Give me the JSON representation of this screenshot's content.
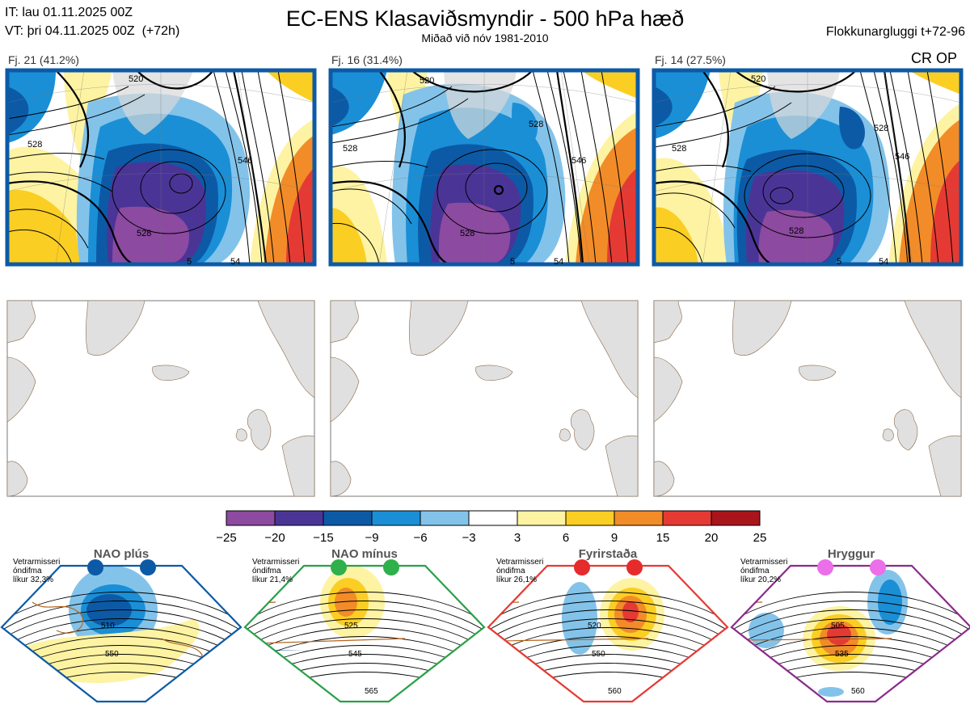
{
  "header": {
    "it_line": "IT: lau 01.11.2025 00Z",
    "vt_line": "VT: þri 04.11.2025 00Z  (+72h)",
    "title": "EC-ENS Klasaviðsmyndir - 500 hPa hæð",
    "subtitle": "Miðað við nóv 1981-2010",
    "window": "Flokkunargluggi t+72-96",
    "cr_op": "CR OP"
  },
  "clusters": [
    {
      "label": "Fj. 21 (41.2%)",
      "members": 21,
      "percent": 41.2,
      "contours": [
        "520",
        "528",
        "546",
        "528",
        "5",
        "54"
      ]
    },
    {
      "label": "Fj. 16 (31.4%)",
      "members": 16,
      "percent": 31.4,
      "contours": [
        "520",
        "528",
        "528",
        "546",
        "528",
        "5",
        "54"
      ]
    },
    {
      "label": "Fj. 14 (27.5%)",
      "members": 14,
      "percent": 27.5,
      "contours": [
        "520",
        "528",
        "528",
        "546",
        "528",
        "5",
        "54"
      ]
    }
  ],
  "colorbar": {
    "ticks": [
      "−25",
      "−20",
      "−15",
      "−9",
      "−6",
      "−3",
      "3",
      "6",
      "9",
      "15",
      "20",
      "25"
    ],
    "colors": [
      "#8c4aa0",
      "#4a3597",
      "#0c5aa6",
      "#1a8fd6",
      "#83c3ea",
      "#ffffff",
      "#fdf3a2",
      "#fbce23",
      "#f28c28",
      "#e53a33",
      "#a9151b"
    ]
  },
  "regimes": [
    {
      "name": "NAO plús",
      "note": "Vetrarmisseri\nóndifma\nlíkur 32,3%",
      "frame_color": "#0c5aa6",
      "dot_color": "#0c5aa6",
      "labels": [
        "510",
        "550"
      ]
    },
    {
      "name": "NAO mínus",
      "note": "Vetrarmisseri\nóndifma\nlíkur 21,4%",
      "frame_color": "#2aa048",
      "dot_color": "#2fb04a",
      "labels": [
        "525",
        "545",
        "565"
      ]
    },
    {
      "name": "Fyrirstaða",
      "note": "Vetrarmisseri\nóndifma\nlíkur 26,1%",
      "frame_color": "#e53a33",
      "dot_color": "#e52b2b",
      "labels": [
        "520",
        "550",
        "560"
      ]
    },
    {
      "name": "Hryggur",
      "note": "Vetrarmisseri\nóndifma\nlíkur 20,2%",
      "frame_color": "#8a2c8c",
      "dot_color": "#ea6fe8",
      "labels": [
        "505",
        "535",
        "560"
      ]
    }
  ],
  "chart_data": {
    "type": "heatmap",
    "title": "EC-ENS Klasaviðsmyndir - 500 hPa hæð",
    "subtitle": "Miðað við nóv 1981-2010",
    "colorbar_bounds": [
      -25,
      -20,
      -15,
      -9,
      -6,
      -3,
      3,
      6,
      9,
      15,
      20,
      25
    ],
    "clusters": [
      {
        "name": "Fj. 21",
        "members": 21,
        "percent": 41.2
      },
      {
        "name": "Fj. 16",
        "members": 16,
        "percent": 31.4
      },
      {
        "name": "Fj. 14",
        "members": 14,
        "percent": 27.5
      }
    ],
    "regimes": [
      {
        "name": "NAO plús",
        "probability": 32.3
      },
      {
        "name": "NAO mínus",
        "probability": 21.4
      },
      {
        "name": "Fyrirstaða",
        "probability": 26.1
      },
      {
        "name": "Hryggur",
        "probability": 20.2
      }
    ]
  }
}
